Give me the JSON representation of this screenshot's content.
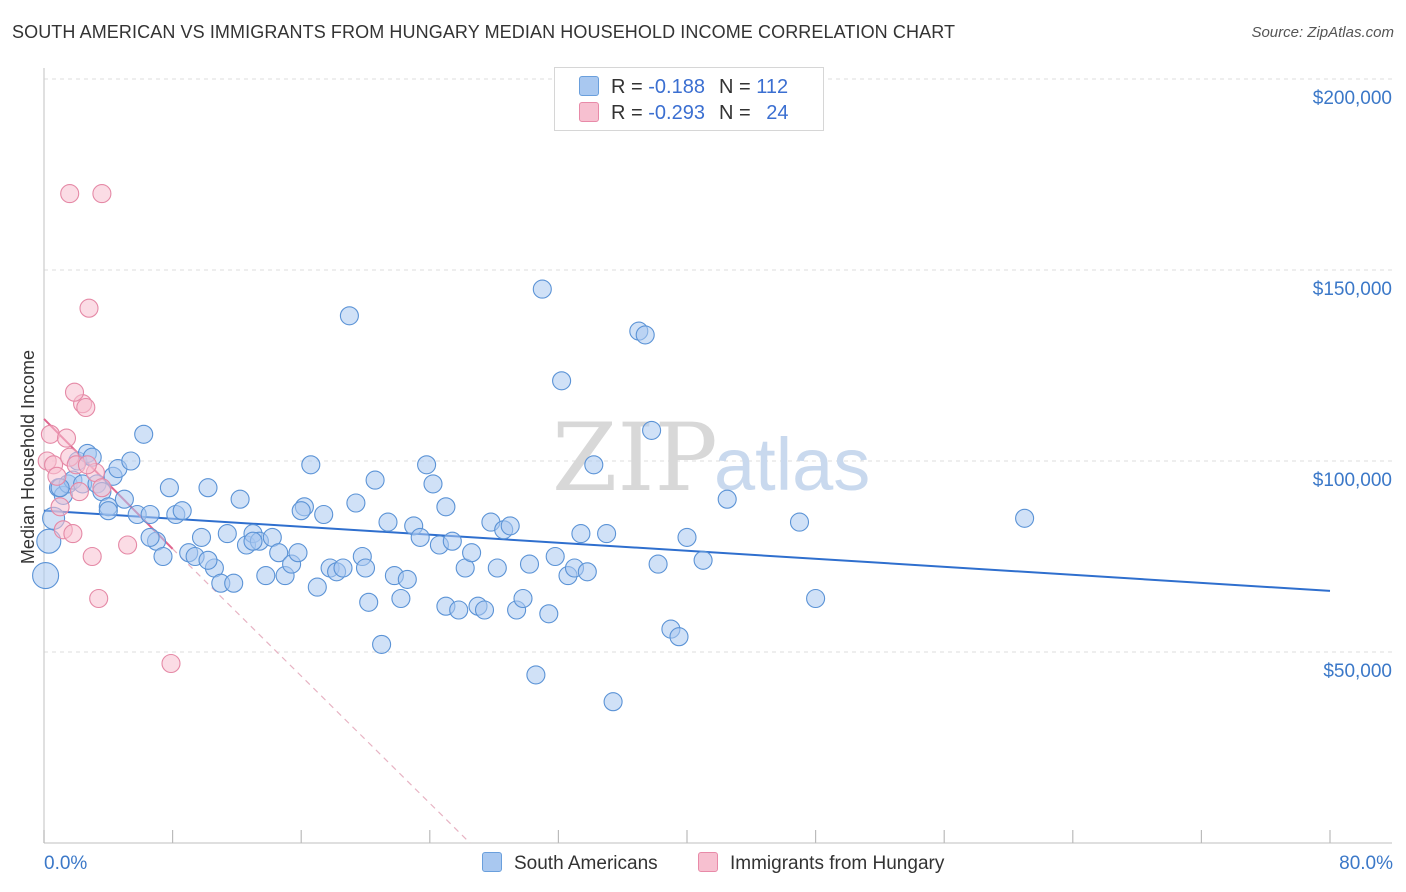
{
  "title": "SOUTH AMERICAN VS IMMIGRANTS FROM HUNGARY MEDIAN HOUSEHOLD INCOME CORRELATION CHART",
  "source": "Source: ZipAtlas.com",
  "watermark": {
    "zip": "ZIP",
    "atlas": "atlas"
  },
  "legend": {
    "rows": [
      {
        "r_label": "R =",
        "r_value": "-0.188",
        "n_label": "N =",
        "n_value": "112",
        "color": "#a9c8f0",
        "border": "#6a9fdc"
      },
      {
        "r_label": "R =",
        "r_value": "-0.293",
        "n_label": "N =",
        "n_value": "24",
        "color": "#f7c0d0",
        "border": "#e88aa8"
      }
    ]
  },
  "bottom_legend": [
    {
      "label": "South Americans",
      "color": "#a9c8f0",
      "border": "#6a9fdc"
    },
    {
      "label": "Immigrants from Hungary",
      "color": "#f7c0d0",
      "border": "#e88aa8"
    }
  ],
  "chart_data": {
    "type": "scatter",
    "title": "SOUTH AMERICAN VS IMMIGRANTS FROM HUNGARY MEDIAN HOUSEHOLD INCOME CORRELATION CHART",
    "xlabel": "",
    "ylabel": "Median Household Income",
    "xlim": [
      0,
      80
    ],
    "ylim": [
      0,
      205000
    ],
    "x_tick_labels": [
      "0.0%",
      "80.0%"
    ],
    "y_ticks": [
      50000,
      100000,
      150000,
      200000
    ],
    "y_tick_labels": [
      "$50,000",
      "$100,000",
      "$150,000",
      "$200,000"
    ],
    "grid": true,
    "series": [
      {
        "name": "South Americans",
        "color": "#a9c8f0",
        "stroke": "#5b93d6",
        "trend": {
          "x": [
            0,
            80
          ],
          "y": [
            87000,
            66000
          ],
          "color": "#2f6fce"
        },
        "points": [
          [
            0.1,
            70000
          ],
          [
            0.3,
            79000
          ],
          [
            0.6,
            85000
          ],
          [
            0.9,
            93000
          ],
          [
            1.2,
            91000
          ],
          [
            1.5,
            94000
          ],
          [
            1.8,
            95000
          ],
          [
            2.1,
            100000
          ],
          [
            2.4,
            94000
          ],
          [
            2.7,
            102000
          ],
          [
            3.0,
            101000
          ],
          [
            3.3,
            94000
          ],
          [
            3.6,
            92000
          ],
          [
            4.0,
            88000
          ],
          [
            4.3,
            96000
          ],
          [
            4.6,
            98000
          ],
          [
            5.0,
            90000
          ],
          [
            5.4,
            100000
          ],
          [
            5.8,
            86000
          ],
          [
            6.2,
            107000
          ],
          [
            6.6,
            86000
          ],
          [
            7.0,
            79000
          ],
          [
            7.4,
            75000
          ],
          [
            7.8,
            93000
          ],
          [
            8.2,
            86000
          ],
          [
            8.6,
            87000
          ],
          [
            9.0,
            76000
          ],
          [
            9.4,
            75000
          ],
          [
            9.8,
            80000
          ],
          [
            10.2,
            93000
          ],
          [
            10.6,
            72000
          ],
          [
            11.0,
            68000
          ],
          [
            11.4,
            81000
          ],
          [
            11.8,
            68000
          ],
          [
            12.2,
            90000
          ],
          [
            12.6,
            78000
          ],
          [
            13.0,
            81000
          ],
          [
            13.4,
            79000
          ],
          [
            13.8,
            70000
          ],
          [
            14.2,
            80000
          ],
          [
            14.6,
            76000
          ],
          [
            15.0,
            70000
          ],
          [
            15.4,
            73000
          ],
          [
            15.8,
            76000
          ],
          [
            16.2,
            88000
          ],
          [
            16.6,
            99000
          ],
          [
            17.0,
            67000
          ],
          [
            17.4,
            86000
          ],
          [
            17.8,
            72000
          ],
          [
            18.2,
            71000
          ],
          [
            18.6,
            72000
          ],
          [
            19.0,
            138000
          ],
          [
            19.4,
            89000
          ],
          [
            19.8,
            75000
          ],
          [
            20.2,
            63000
          ],
          [
            20.6,
            95000
          ],
          [
            21.0,
            52000
          ],
          [
            21.4,
            84000
          ],
          [
            21.8,
            70000
          ],
          [
            22.2,
            64000
          ],
          [
            22.6,
            69000
          ],
          [
            23.0,
            83000
          ],
          [
            23.4,
            80000
          ],
          [
            23.8,
            99000
          ],
          [
            24.2,
            94000
          ],
          [
            24.6,
            78000
          ],
          [
            25.0,
            62000
          ],
          [
            25.4,
            79000
          ],
          [
            25.8,
            61000
          ],
          [
            26.2,
            72000
          ],
          [
            26.6,
            76000
          ],
          [
            27.0,
            62000
          ],
          [
            27.4,
            61000
          ],
          [
            27.8,
            84000
          ],
          [
            28.2,
            72000
          ],
          [
            28.6,
            82000
          ],
          [
            29.0,
            83000
          ],
          [
            29.4,
            61000
          ],
          [
            29.8,
            64000
          ],
          [
            30.2,
            73000
          ],
          [
            30.6,
            44000
          ],
          [
            31.0,
            145000
          ],
          [
            31.4,
            60000
          ],
          [
            31.8,
            75000
          ],
          [
            32.2,
            121000
          ],
          [
            32.6,
            70000
          ],
          [
            33.0,
            72000
          ],
          [
            33.4,
            81000
          ],
          [
            33.8,
            71000
          ],
          [
            34.2,
            99000
          ],
          [
            35.0,
            81000
          ],
          [
            35.4,
            37000
          ],
          [
            37.0,
            134000
          ],
          [
            37.4,
            133000
          ],
          [
            37.8,
            108000
          ],
          [
            38.2,
            73000
          ],
          [
            39.0,
            56000
          ],
          [
            39.5,
            54000
          ],
          [
            40.0,
            80000
          ],
          [
            41.0,
            74000
          ],
          [
            42.5,
            90000
          ],
          [
            47.0,
            84000
          ],
          [
            48.0,
            64000
          ],
          [
            61.0,
            85000
          ],
          [
            1.0,
            93000
          ],
          [
            4.0,
            87000
          ],
          [
            6.6,
            80000
          ],
          [
            10.2,
            74000
          ],
          [
            13.0,
            79000
          ],
          [
            16.0,
            87000
          ],
          [
            20.0,
            72000
          ],
          [
            25.0,
            88000
          ]
        ]
      },
      {
        "name": "Immigrants from Hungary",
        "color": "#f7c0d0",
        "stroke": "#e589a6",
        "trend": {
          "x": [
            0,
            8
          ],
          "y": [
            111000,
            77000
          ],
          "color": "#e0668f",
          "dashed_extension_to": [
            26.5,
            0
          ]
        },
        "points": [
          [
            0.2,
            100000
          ],
          [
            0.4,
            107000
          ],
          [
            0.6,
            99000
          ],
          [
            0.8,
            96000
          ],
          [
            1.0,
            88000
          ],
          [
            1.2,
            82000
          ],
          [
            1.4,
            106000
          ],
          [
            1.6,
            101000
          ],
          [
            1.8,
            81000
          ],
          [
            2.0,
            99000
          ],
          [
            2.2,
            92000
          ],
          [
            2.4,
            115000
          ],
          [
            2.6,
            114000
          ],
          [
            2.8,
            140000
          ],
          [
            3.0,
            75000
          ],
          [
            3.2,
            97000
          ],
          [
            3.4,
            64000
          ],
          [
            3.6,
            93000
          ],
          [
            1.6,
            170000
          ],
          [
            3.6,
            170000
          ],
          [
            1.9,
            118000
          ],
          [
            5.2,
            78000
          ],
          [
            7.9,
            47000
          ],
          [
            2.7,
            99000
          ]
        ]
      }
    ]
  }
}
